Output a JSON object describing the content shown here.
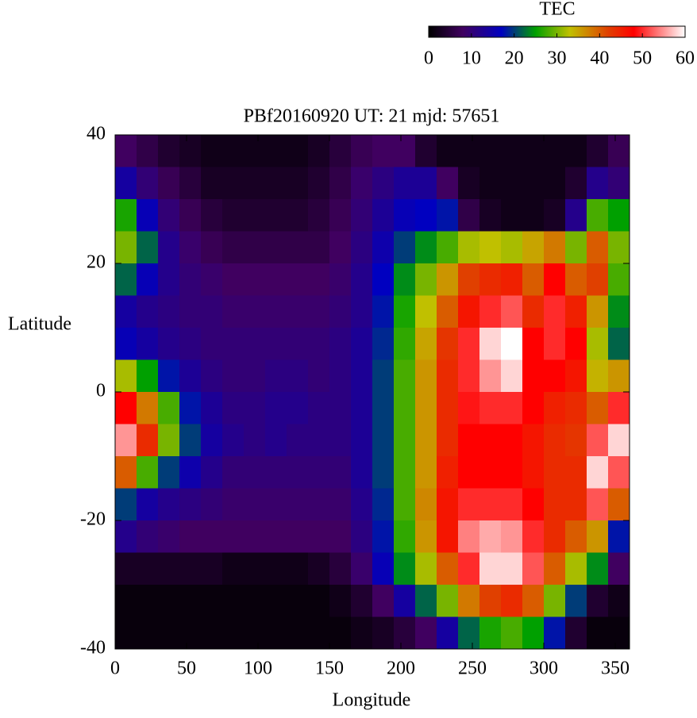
{
  "chart_data": {
    "type": "heatmap",
    "title": "PBf20160920  UT: 21  mjd: 57651",
    "x_label": "Longitude",
    "y_label": "Latitude",
    "xlim": [
      0,
      360
    ],
    "xticks": [
      0,
      50,
      100,
      150,
      200,
      250,
      300,
      350
    ],
    "ylim": [
      -40,
      40
    ],
    "yticks": [
      -40,
      -20,
      0,
      20,
      40
    ],
    "x": [
      7.5,
      22.5,
      37.5,
      52.5,
      67.5,
      82.5,
      97.5,
      112.5,
      127.5,
      142.5,
      157.5,
      172.5,
      187.5,
      202.5,
      217.5,
      232.5,
      247.5,
      262.5,
      277.5,
      292.5,
      307.5,
      322.5,
      337.5,
      352.5
    ],
    "y": [
      37.5,
      32.5,
      27.5,
      22.5,
      17.5,
      12.5,
      7.5,
      2.5,
      -2.5,
      -7.5,
      -12.5,
      -17.5,
      -22.5,
      -27.5,
      -32.5,
      -37.5
    ],
    "z": [
      [
        8,
        6,
        4,
        3,
        2,
        2,
        2,
        2,
        2,
        3,
        5,
        7,
        8,
        8,
        4,
        2,
        2,
        2,
        2,
        2,
        2,
        2,
        4,
        7
      ],
      [
        14,
        10,
        7,
        5,
        3,
        3,
        3,
        3,
        3,
        4,
        6,
        9,
        11,
        13,
        13,
        8,
        3,
        2,
        2,
        2,
        2,
        4,
        12,
        10
      ],
      [
        26,
        16,
        10,
        7,
        5,
        4,
        4,
        4,
        4,
        5,
        7,
        10,
        13,
        16,
        17,
        18,
        6,
        3,
        2,
        2,
        3,
        12,
        28,
        25
      ],
      [
        30,
        22,
        12,
        9,
        7,
        6,
        6,
        6,
        6,
        6,
        8,
        11,
        15,
        20,
        24,
        28,
        32,
        33,
        32,
        35,
        38,
        30,
        40,
        30
      ],
      [
        22,
        16,
        12,
        10,
        9,
        8,
        8,
        8,
        8,
        8,
        9,
        12,
        17,
        24,
        30,
        36,
        42,
        44,
        45,
        40,
        48,
        40,
        42,
        28
      ],
      [
        14,
        12,
        11,
        10,
        10,
        9,
        9,
        9,
        9,
        9,
        10,
        12,
        18,
        26,
        33,
        40,
        46,
        50,
        52,
        44,
        50,
        45,
        36,
        24
      ],
      [
        16,
        14,
        12,
        11,
        10,
        10,
        10,
        10,
        10,
        10,
        11,
        13,
        19,
        27,
        35,
        43,
        50,
        58,
        60,
        48,
        50,
        48,
        32,
        22
      ],
      [
        32,
        25,
        18,
        13,
        11,
        10,
        10,
        11,
        11,
        10,
        11,
        13,
        20,
        28,
        36,
        44,
        50,
        55,
        58,
        48,
        48,
        46,
        34,
        36
      ],
      [
        48,
        38,
        28,
        18,
        13,
        11,
        11,
        12,
        12,
        11,
        11,
        13,
        20,
        28,
        36,
        44,
        49,
        50,
        50,
        48,
        45,
        44,
        40,
        50
      ],
      [
        55,
        44,
        30,
        20,
        14,
        12,
        11,
        12,
        11,
        11,
        11,
        13,
        20,
        28,
        36,
        44,
        48,
        48,
        48,
        46,
        44,
        43,
        52,
        58
      ],
      [
        40,
        28,
        20,
        15,
        12,
        10,
        10,
        10,
        10,
        10,
        10,
        13,
        20,
        28,
        36,
        45,
        48,
        48,
        48,
        46,
        44,
        44,
        58,
        52
      ],
      [
        20,
        14,
        12,
        11,
        10,
        9,
        9,
        9,
        9,
        9,
        9,
        12,
        19,
        28,
        37,
        46,
        50,
        50,
        50,
        48,
        44,
        44,
        52,
        40
      ],
      [
        12,
        10,
        9,
        8,
        8,
        8,
        8,
        8,
        8,
        8,
        8,
        11,
        18,
        27,
        36,
        46,
        54,
        56,
        55,
        50,
        44,
        40,
        36,
        18
      ],
      [
        3,
        3,
        3,
        3,
        3,
        2,
        2,
        2,
        2,
        3,
        5,
        9,
        16,
        24,
        32,
        40,
        50,
        58,
        58,
        52,
        40,
        32,
        24,
        8
      ],
      [
        1,
        1,
        1,
        1,
        1,
        1,
        1,
        1,
        1,
        1,
        2,
        4,
        8,
        14,
        22,
        30,
        38,
        42,
        44,
        40,
        30,
        20,
        4,
        2
      ],
      [
        1,
        1,
        1,
        1,
        1,
        1,
        1,
        1,
        1,
        1,
        1,
        2,
        3,
        5,
        8,
        14,
        22,
        26,
        28,
        25,
        18,
        4,
        1,
        1
      ]
    ],
    "colorscale": [
      [
        0,
        "#000000"
      ],
      [
        8,
        "#400060"
      ],
      [
        17,
        "#0000c0"
      ],
      [
        25,
        "#00a000"
      ],
      [
        33,
        "#c0c000"
      ],
      [
        42,
        "#e04000"
      ],
      [
        48,
        "#ff0000"
      ],
      [
        60,
        "#ffffff"
      ]
    ],
    "colorbar": {
      "title": "TEC",
      "lim": [
        0,
        60
      ],
      "ticks": [
        0,
        10,
        20,
        30,
        40,
        50,
        60
      ]
    }
  }
}
